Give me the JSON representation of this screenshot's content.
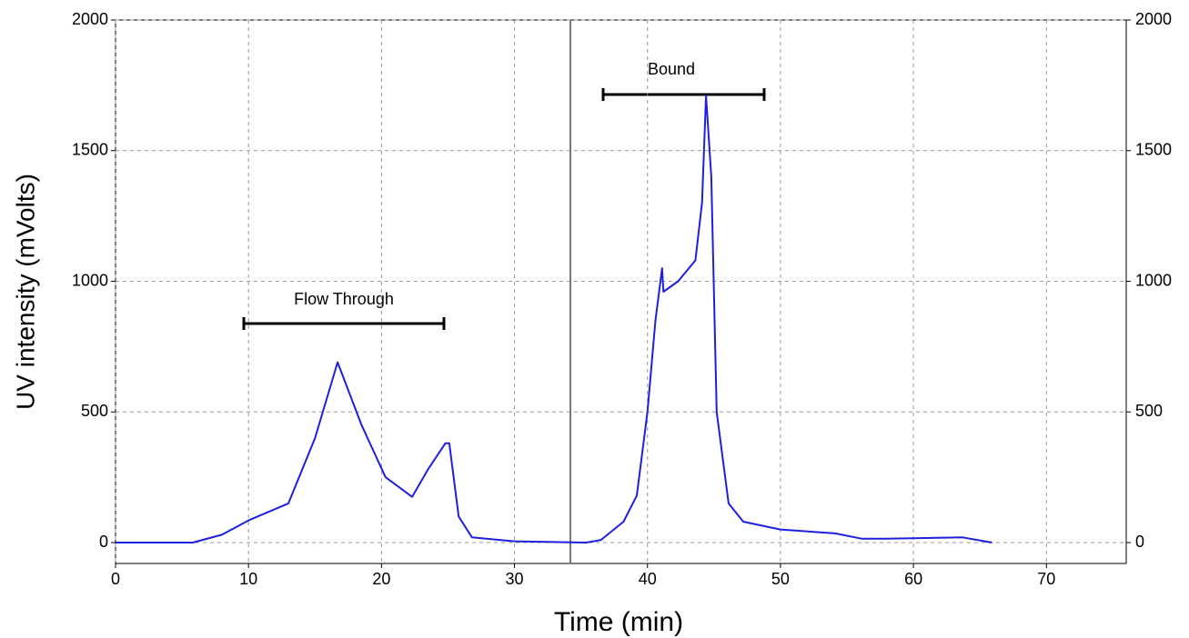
{
  "chart_data": {
    "type": "line",
    "x_label": "Time (min)",
    "y_label": "UV intensity (mVolts)",
    "xlim": [
      0,
      76
    ],
    "ylim": [
      -80,
      2000
    ],
    "xticks": [
      0,
      10,
      20,
      30,
      40,
      50,
      60,
      70
    ],
    "yticks": [
      0,
      500,
      1000,
      1500,
      2000
    ],
    "grid": true,
    "annotations": [
      "Flow Through",
      "Bound"
    ],
    "series": [
      {
        "color": "#1f1fe0",
        "x": [
          0,
          5.8,
          8,
          10,
          13,
          15,
          16.7,
          18.5,
          20.3,
          22.3,
          23.5,
          24.8,
          25.1,
          25.8,
          26.8,
          30,
          35.4,
          36.5,
          38.2,
          39.2,
          40,
          40.6,
          41.1,
          41.2,
          42.3,
          43.6,
          44.1,
          44.4,
          44.8,
          45.2,
          46.1,
          47.2,
          50,
          54.1,
          56.1,
          57.9,
          63.7,
          65.9
        ],
        "values": [
          0,
          0,
          30,
          85,
          150,
          400,
          690,
          450,
          250,
          175,
          280,
          380,
          380,
          100,
          20,
          5,
          0,
          10,
          80,
          180,
          500,
          850,
          1050,
          960,
          1000,
          1080,
          1300,
          1710,
          1400,
          500,
          150,
          80,
          50,
          35,
          15,
          15,
          20,
          0
        ]
      }
    ]
  }
}
